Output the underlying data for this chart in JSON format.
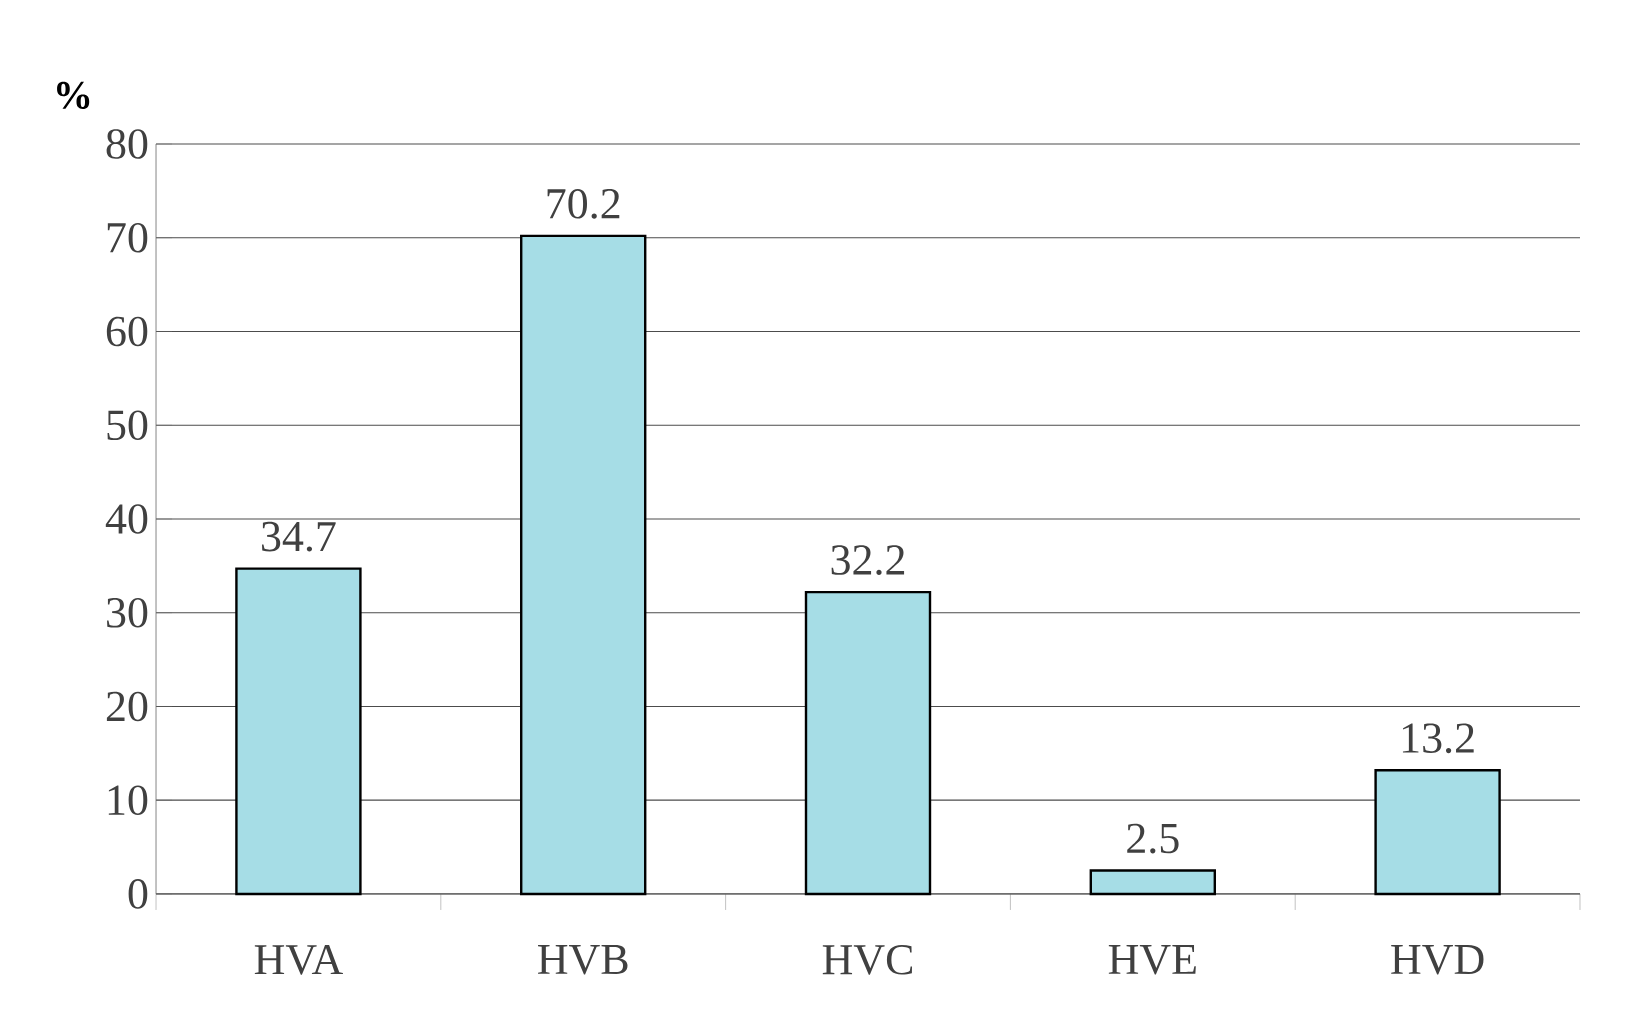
{
  "chart_data": {
    "type": "bar",
    "ylabel": "%",
    "categories": [
      "HVA",
      "HVB",
      "HVC",
      "HVE",
      "HVD"
    ],
    "values": [
      34.7,
      70.2,
      32.2,
      2.5,
      13.2
    ],
    "color": "#a6dde6",
    "ylim": [
      0,
      80
    ],
    "yticks": [
      0,
      10,
      20,
      30,
      40,
      50,
      60,
      70,
      80
    ],
    "grid": "y",
    "data_labels": true
  }
}
